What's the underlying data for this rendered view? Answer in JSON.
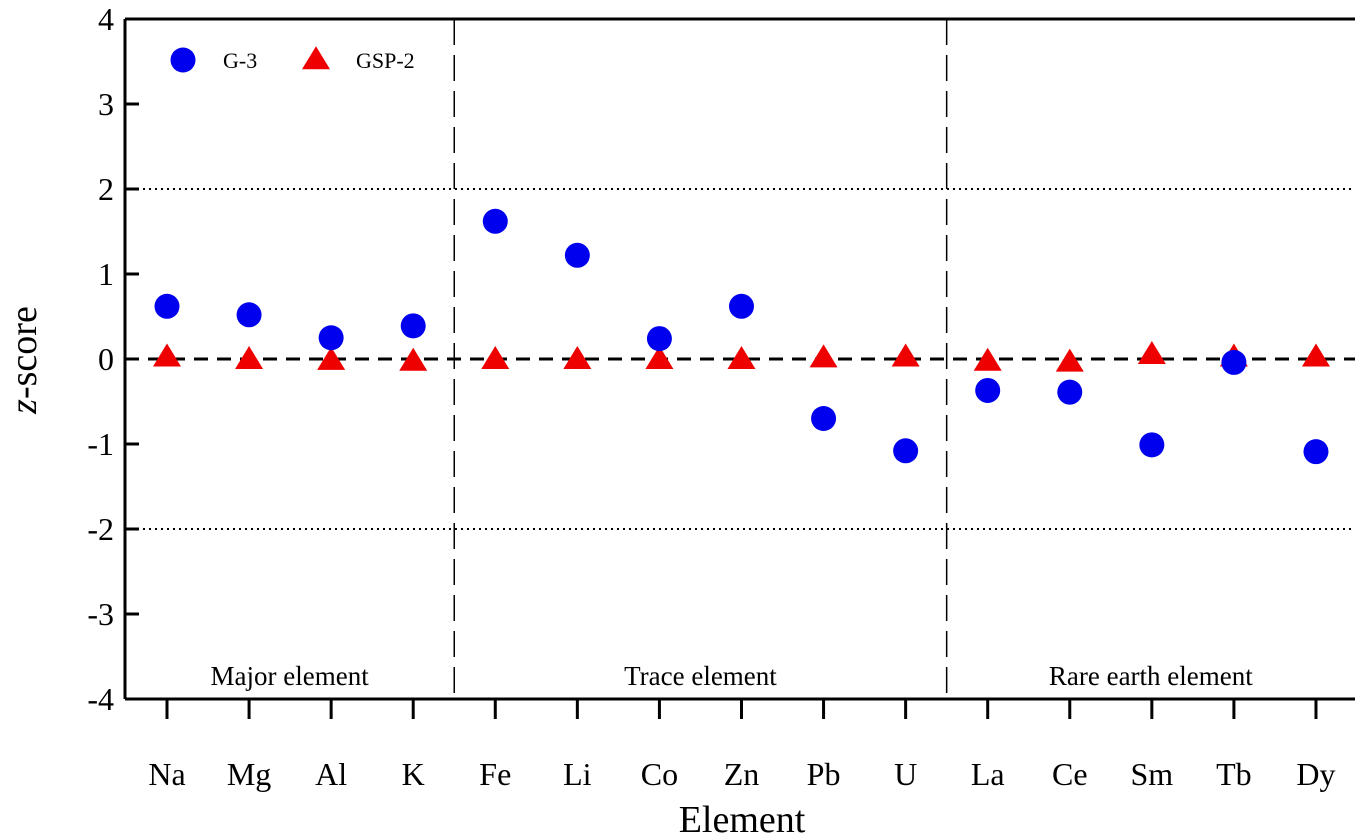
{
  "chart_data": {
    "type": "scatter",
    "xlabel": "Element",
    "ylabel_italic": "z",
    "ylabel_rest": "-score",
    "categories": [
      "Na",
      "Mg",
      "Al",
      "K",
      "Fe",
      "Li",
      "Co",
      "Zn",
      "Pb",
      "U",
      "La",
      "Ce",
      "Sm",
      "Tb",
      "Dy"
    ],
    "ylim": [
      -4,
      4
    ],
    "yticks": [
      -4,
      -3,
      -2,
      -1,
      0,
      1,
      2,
      3,
      4
    ],
    "grid": false,
    "reference_lines": [
      {
        "y": 0,
        "style": "dashed"
      },
      {
        "y": 2,
        "style": "dotted"
      },
      {
        "y": -2,
        "style": "dotted"
      }
    ],
    "groups": [
      {
        "label": "Major element",
        "start": 0,
        "end": 3
      },
      {
        "label": "Trace element",
        "start": 4,
        "end": 9
      },
      {
        "label": "Rare earth element",
        "start": 10,
        "end": 14
      }
    ],
    "legend_position": "top-left",
    "series": [
      {
        "name": "G-3",
        "marker": "circle",
        "color": "#0000ee",
        "values": [
          0.62,
          0.52,
          0.25,
          0.39,
          1.62,
          1.22,
          0.24,
          0.62,
          -0.7,
          -1.08,
          -0.37,
          -0.39,
          -1.01,
          -0.04,
          -1.09
        ]
      },
      {
        "name": "GSP-2",
        "marker": "triangle",
        "color": "#ee0000",
        "values": [
          0.02,
          -0.01,
          -0.02,
          -0.03,
          -0.01,
          -0.01,
          -0.01,
          -0.01,
          0.01,
          0.02,
          -0.03,
          -0.04,
          0.05,
          0.02,
          0.02
        ]
      }
    ]
  }
}
